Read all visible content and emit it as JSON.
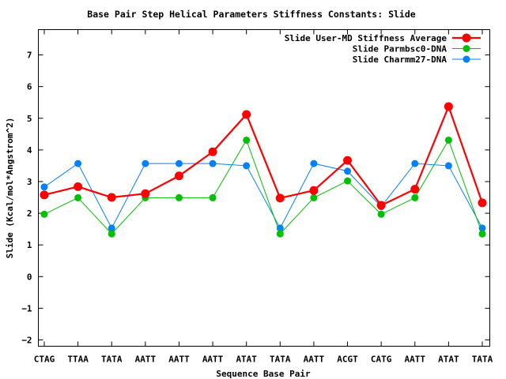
{
  "chart_data": {
    "type": "line",
    "title": "Base Pair Step Helical Parameters Stiffness Constants: Slide",
    "xlabel": "Sequence Base Pair",
    "ylabel": "Slide (Kcal/mol*Angstrom^2)",
    "ylim": [
      -2.2,
      7.8
    ],
    "yticks": [
      -2,
      -1,
      0,
      1,
      2,
      3,
      4,
      5,
      6,
      7
    ],
    "ytick_labels": [
      "−2",
      "−1",
      "0",
      "1",
      "2",
      "3",
      "4",
      "5",
      "6",
      "7"
    ],
    "categories": [
      "CTAG",
      "TTAA",
      "TATA",
      "AATT",
      "AATT",
      "AATT",
      "ATAT",
      "TATA",
      "AATT",
      "ACGT",
      "CATG",
      "AATT",
      "ATAT",
      "TATA"
    ],
    "legend_position": "top-right",
    "grid": false,
    "series": [
      {
        "name": "Slide User-MD Stiffness Average",
        "color": "#ff0000",
        "values": [
          2.58,
          2.84,
          2.5,
          2.62,
          3.18,
          3.94,
          5.12,
          2.48,
          2.72,
          3.67,
          2.25,
          2.76,
          5.37,
          2.33
        ]
      },
      {
        "name": "Slide Parmbsc0-DNA",
        "color": "#00c000",
        "values": [
          1.97,
          2.49,
          1.35,
          2.49,
          2.49,
          2.49,
          4.31,
          1.35,
          2.49,
          3.02,
          1.97,
          2.49,
          4.31,
          1.35
        ]
      },
      {
        "name": "Slide Charmm27-DNA",
        "color": "#0080ff",
        "values": [
          2.83,
          3.57,
          1.53,
          3.57,
          3.57,
          3.57,
          3.5,
          1.53,
          3.57,
          3.33,
          2.21,
          3.57,
          3.5,
          1.53
        ]
      }
    ]
  }
}
